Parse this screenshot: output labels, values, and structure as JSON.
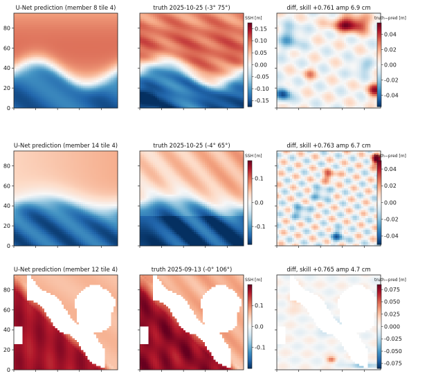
{
  "chart_data": {
    "type": "heatmap",
    "colormap": "RdBu_r",
    "rows": [
      {
        "panels": [
          {
            "kind": "prediction",
            "title": "U-Net prediction  (member 8 tile 4)",
            "xlim": [
              0,
              95
            ],
            "ylim": [
              0,
              95
            ],
            "yticks": [
              "0",
              "20",
              "40",
              "60",
              "80"
            ]
          },
          {
            "kind": "truth",
            "title": "truth 2025-10-25 (-3° 75°)",
            "xlim": [
              0,
              95
            ],
            "ylim": [
              0,
              95
            ]
          },
          {
            "kind": "diff",
            "title": "diff, skill +0.761 amp 6.9 cm",
            "xlim": [
              0,
              95
            ],
            "ylim": [
              0,
              95
            ]
          }
        ],
        "ssh_colorbar": {
          "label": "SSH [m]",
          "range": [
            -0.175,
            0.175
          ],
          "ticks": [
            "0.15",
            "0.10",
            "0.05",
            "0.00",
            "-0.05",
            "-0.10",
            "-0.15"
          ]
        },
        "diff_colorbar": {
          "label": "truth−pred [m]",
          "range": [
            -0.055,
            0.055
          ],
          "ticks": [
            "0.04",
            "0.02",
            "0.00",
            "-0.02",
            "-0.04"
          ]
        }
      },
      {
        "panels": [
          {
            "kind": "prediction",
            "title": "U-Net prediction  (member 14 tile 4)",
            "xlim": [
              0,
              95
            ],
            "ylim": [
              0,
              95
            ],
            "yticks": [
              "0",
              "20",
              "40",
              "60",
              "80"
            ]
          },
          {
            "kind": "truth",
            "title": "truth 2025-10-25 (-4° 65°)",
            "xlim": [
              0,
              95
            ],
            "ylim": [
              0,
              95
            ]
          },
          {
            "kind": "diff",
            "title": "diff, skill +0.763 amp 6.7 cm",
            "xlim": [
              0,
              95
            ],
            "ylim": [
              0,
              95
            ]
          }
        ],
        "ssh_colorbar": {
          "label": "SSH [m]",
          "range": [
            -0.175,
            0.175
          ],
          "ticks": [
            "0.1",
            "0.0",
            "-0.1"
          ]
        },
        "diff_colorbar": {
          "label": "truth−pred [m]",
          "range": [
            -0.05,
            0.05
          ],
          "ticks": [
            "0.04",
            "0.02",
            "0.00",
            "-0.02",
            "-0.04"
          ]
        }
      },
      {
        "panels": [
          {
            "kind": "prediction",
            "title": "U-Net prediction  (member 12 tile 4)",
            "xlim": [
              0,
              95
            ],
            "ylim": [
              0,
              95
            ],
            "yticks": [
              "0",
              "20",
              "40",
              "60",
              "80"
            ]
          },
          {
            "kind": "truth",
            "title": "truth 2025-09-13 (-0° 106°)",
            "xlim": [
              0,
              95
            ],
            "ylim": [
              0,
              95
            ]
          },
          {
            "kind": "diff",
            "title": "diff, skill +0.765 amp 4.7 cm",
            "xlim": [
              0,
              95
            ],
            "ylim": [
              0,
              95
            ]
          }
        ],
        "ssh_colorbar": {
          "label": "SSH [m]",
          "range": [
            -0.2,
            0.2
          ],
          "ticks": [
            "0.1",
            "0.0",
            "-0.1"
          ]
        },
        "diff_colorbar": {
          "label": "truth−pred [m]",
          "range": [
            -0.085,
            0.085
          ],
          "ticks": [
            "0.075",
            "0.050",
            "0.025",
            "0.000",
            "-0.025",
            "-0.050",
            "-0.075"
          ]
        }
      }
    ]
  }
}
